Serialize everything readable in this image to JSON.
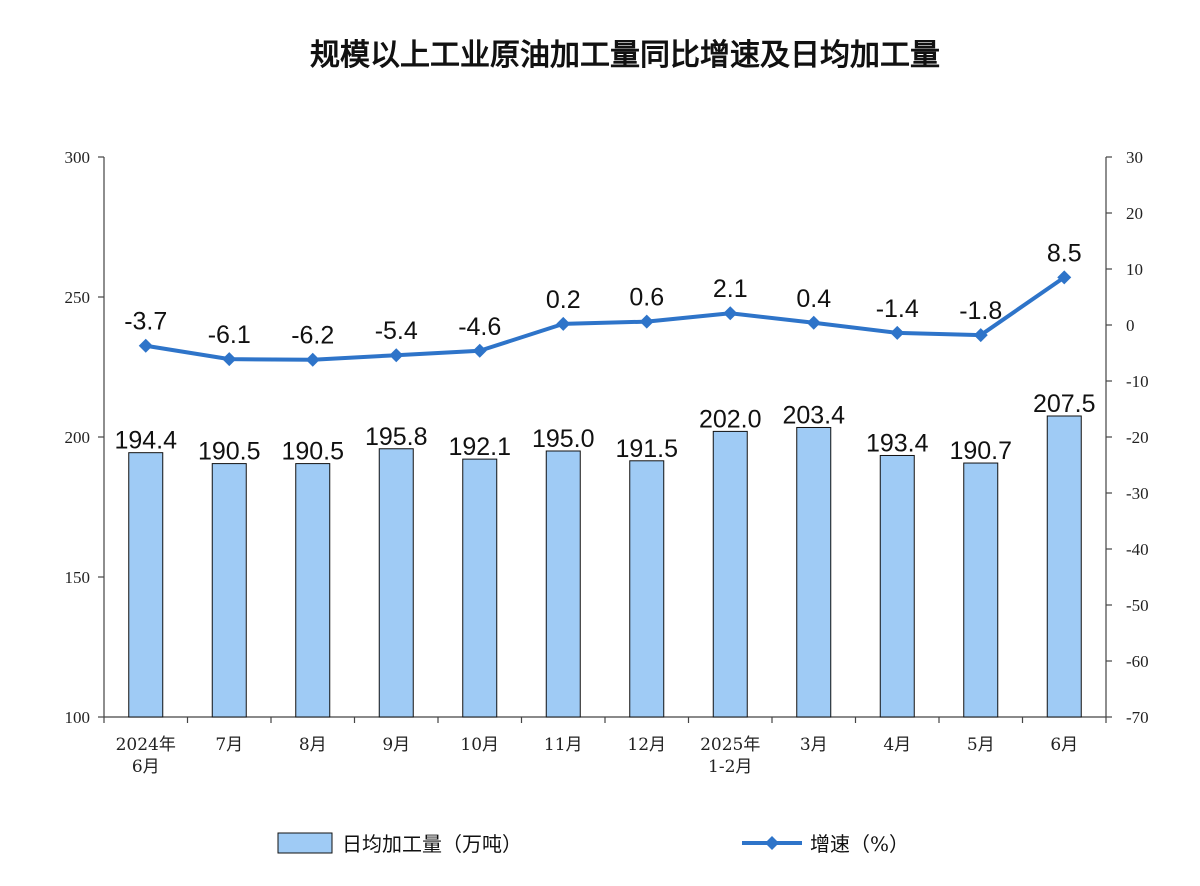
{
  "chart_data": {
    "type": "bar",
    "title": "规模以上工业原油加工量同比增速及日均加工量",
    "categories": [
      [
        "2024年",
        "6月"
      ],
      [
        "7月"
      ],
      [
        "8月"
      ],
      [
        "9月"
      ],
      [
        "10月"
      ],
      [
        "11月"
      ],
      [
        "12月"
      ],
      [
        "2025年",
        "1-2月"
      ],
      [
        "3月"
      ],
      [
        "4月"
      ],
      [
        "5月"
      ],
      [
        "6月"
      ]
    ],
    "series": [
      {
        "name": "日均加工量（万吨）",
        "type": "bar",
        "axis": "left",
        "color": "#9fcbf5",
        "values": [
          194.4,
          190.5,
          190.5,
          195.8,
          192.1,
          195.0,
          191.5,
          202.0,
          203.4,
          193.4,
          190.7,
          207.5
        ],
        "labels": [
          "194.4",
          "190.5",
          "190.5",
          "195.8",
          "192.1",
          "195.0",
          "191.5",
          "202.0",
          "203.4",
          "193.4",
          "190.7",
          "207.5"
        ]
      },
      {
        "name": "增速（%）",
        "type": "line",
        "axis": "right",
        "color": "#2e74c9",
        "values": [
          -3.7,
          -6.1,
          -6.2,
          -5.4,
          -4.6,
          0.2,
          0.6,
          2.1,
          0.4,
          -1.4,
          -1.8,
          8.5
        ],
        "labels": [
          "-3.7",
          "-6.1",
          "-6.2",
          "-5.4",
          "-4.6",
          "0.2",
          "0.6",
          "2.1",
          "0.4",
          "-1.4",
          "-1.8",
          "8.5"
        ]
      }
    ],
    "y_left": {
      "min": 100,
      "max": 300,
      "ticks": [
        "100",
        "150",
        "200",
        "250",
        "300"
      ]
    },
    "y_right": {
      "min": -70,
      "max": 30,
      "ticks": [
        "-70",
        "-60",
        "-50",
        "-40",
        "-30",
        "-20",
        "-10",
        "0",
        "10",
        "20",
        "30"
      ]
    },
    "grid": false,
    "legend_position": "bottom-center"
  }
}
